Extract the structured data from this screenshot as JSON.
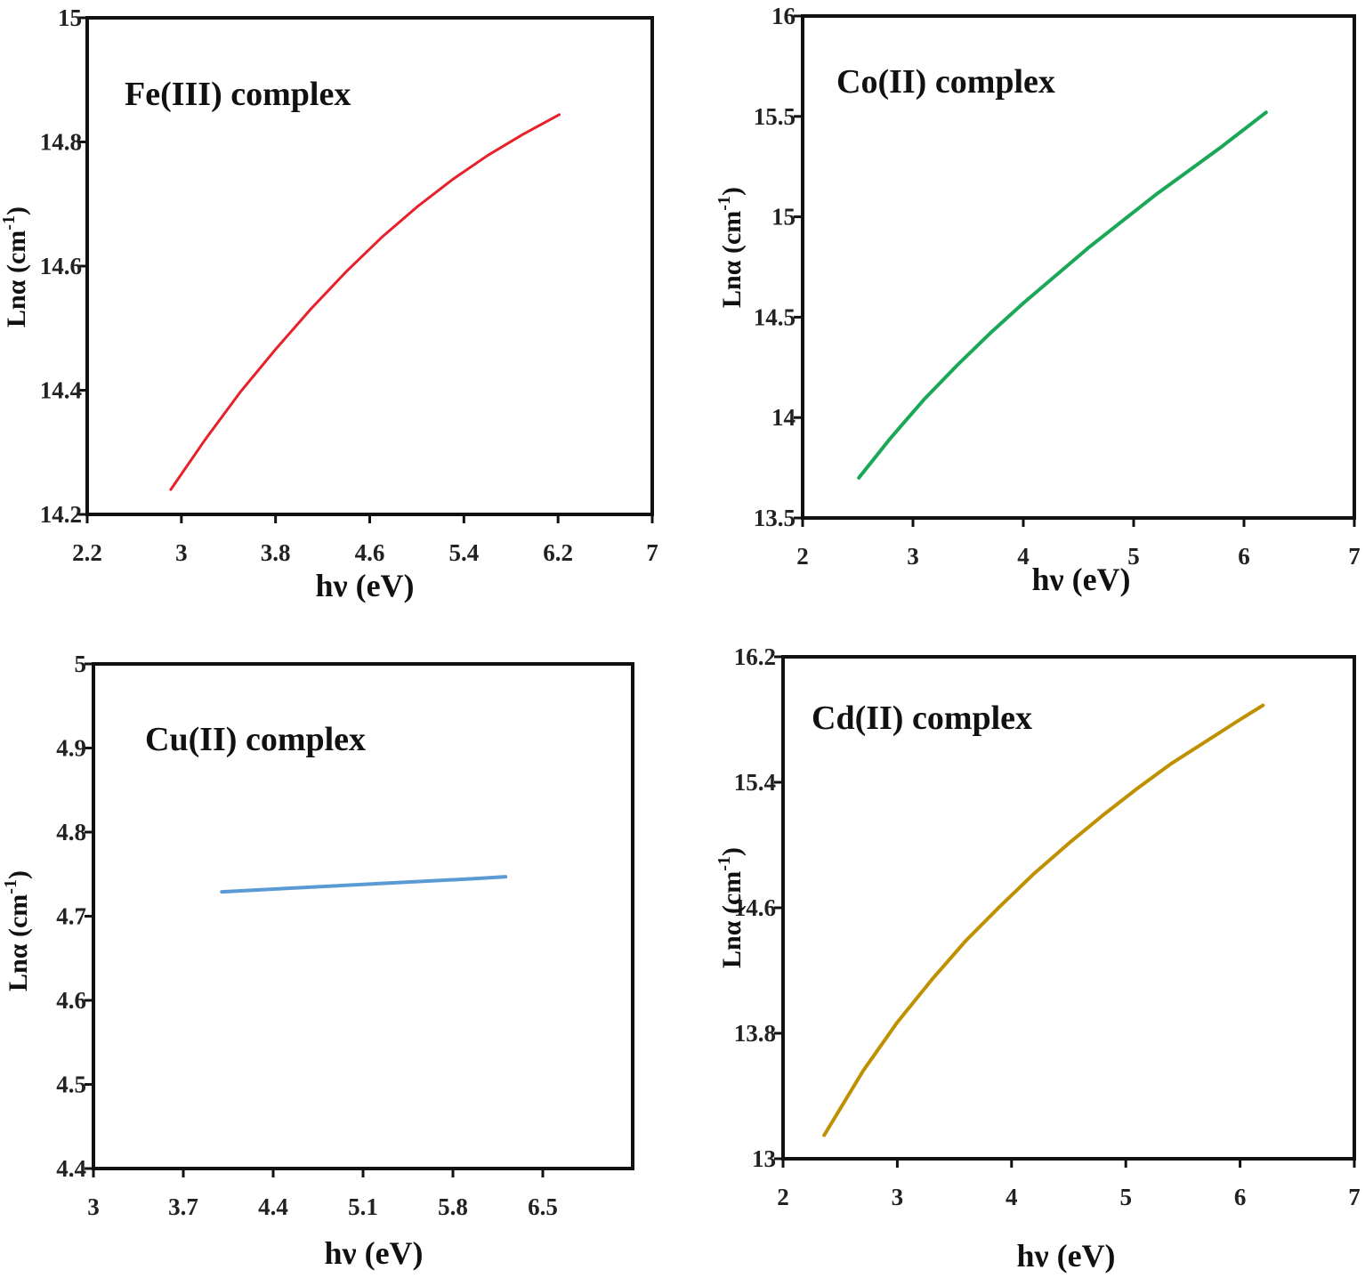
{
  "chart_data": [
    {
      "type": "line",
      "title": "Fe(III) complex",
      "xlabel": "hν (eV)",
      "ylabel": "Lnα (cm",
      "ylabel_sup": "-1",
      "ylabel_close": ")",
      "xlim": [
        2.2,
        7.0
      ],
      "ylim": [
        14.2,
        15.0
      ],
      "xticks": [
        2.2,
        3.0,
        3.8,
        4.6,
        5.4,
        6.2,
        7.0
      ],
      "xtick_labels": [
        "2.2",
        "3",
        "3.8",
        "4.6",
        "5.4",
        "6.2",
        "7"
      ],
      "yticks": [
        14.2,
        14.4,
        14.6,
        14.8,
        15.0
      ],
      "ytick_labels": [
        "14.2",
        "14.4",
        "14.6",
        "14.8",
        "15"
      ],
      "color": "#e8202a",
      "series": [
        {
          "name": "Fe(III) complex",
          "x": [
            2.91,
            3.2,
            3.5,
            3.8,
            4.1,
            4.4,
            4.7,
            5.0,
            5.3,
            5.6,
            5.9,
            6.21
          ],
          "y": [
            14.24,
            14.32,
            14.397,
            14.466,
            14.531,
            14.591,
            14.646,
            14.695,
            14.739,
            14.778,
            14.812,
            14.844
          ]
        }
      ]
    },
    {
      "type": "line",
      "title": "Co(II) complex",
      "xlabel": "hν (eV)",
      "ylabel": "Lnα (cm",
      "ylabel_sup": "-1",
      "ylabel_close": ")",
      "xlim": [
        2,
        7
      ],
      "ylim": [
        13.5,
        16.0
      ],
      "xticks": [
        2,
        3,
        4,
        5,
        6,
        7
      ],
      "xtick_labels": [
        "2",
        "3",
        "4",
        "5",
        "6",
        "7"
      ],
      "yticks": [
        13.5,
        14.0,
        14.5,
        15.0,
        15.5,
        16.0
      ],
      "ytick_labels": [
        "13.5",
        "14",
        "14.5",
        "15",
        "15.5",
        "16"
      ],
      "color": "#1aa856",
      "series": [
        {
          "name": "Co(II) complex",
          "x": [
            2.51,
            2.8,
            3.1,
            3.4,
            3.7,
            4.0,
            4.3,
            4.6,
            4.9,
            5.2,
            5.5,
            5.8,
            6.2
          ],
          "y": [
            13.7,
            13.9,
            14.09,
            14.26,
            14.42,
            14.57,
            14.71,
            14.85,
            14.98,
            15.11,
            15.23,
            15.35,
            15.52
          ]
        }
      ]
    },
    {
      "type": "line",
      "title": "Cu(II) complex",
      "xlabel": "hν (eV)",
      "ylabel": "Lnα (cm",
      "ylabel_sup": "-1",
      "ylabel_close": ")",
      "xlim": [
        3.0,
        7.2
      ],
      "ylim": [
        4.4,
        5.0
      ],
      "xticks": [
        3.0,
        3.7,
        4.4,
        5.1,
        5.8,
        6.5
      ],
      "xtick_labels": [
        "3",
        "3.7",
        "4.4",
        "5.1",
        "5.8",
        "6.5"
      ],
      "yticks": [
        4.4,
        4.5,
        4.6,
        4.7,
        4.8,
        4.9,
        5.0
      ],
      "ytick_labels": [
        "4.4",
        "4.5",
        "4.6",
        "4.7",
        "4.8",
        "4.9",
        "5"
      ],
      "color": "#5b9bd5",
      "series": [
        {
          "name": "Cu(II) complex",
          "x": [
            4.0,
            4.5,
            5.0,
            5.5,
            6.0,
            6.21
          ],
          "y": [
            4.729,
            4.733,
            4.737,
            4.741,
            4.745,
            4.747
          ]
        }
      ]
    },
    {
      "type": "line",
      "title": "Cd(II) complex",
      "xlabel": "hν (eV)",
      "ylabel": "Lnα (cm",
      "ylabel_sup": "-1",
      "ylabel_close": ")",
      "xlim": [
        2,
        7
      ],
      "ylim": [
        13.0,
        16.2
      ],
      "xticks": [
        2,
        3,
        4,
        5,
        6,
        7
      ],
      "xtick_labels": [
        "2",
        "3",
        "4",
        "5",
        "6",
        "7"
      ],
      "yticks": [
        13.0,
        13.8,
        14.6,
        15.4,
        16.2
      ],
      "ytick_labels": [
        "13",
        "13.8",
        "14.6",
        "15.4",
        "16.2"
      ],
      "color": "#bf9000",
      "series": [
        {
          "name": "Cd(II) complex",
          "x": [
            2.36,
            2.7,
            3.0,
            3.3,
            3.6,
            3.9,
            4.2,
            4.5,
            4.8,
            5.1,
            5.4,
            5.7,
            6.0,
            6.2
          ],
          "y": [
            13.15,
            13.56,
            13.87,
            14.14,
            14.39,
            14.61,
            14.82,
            15.01,
            15.19,
            15.36,
            15.52,
            15.66,
            15.8,
            15.89
          ]
        }
      ]
    }
  ]
}
